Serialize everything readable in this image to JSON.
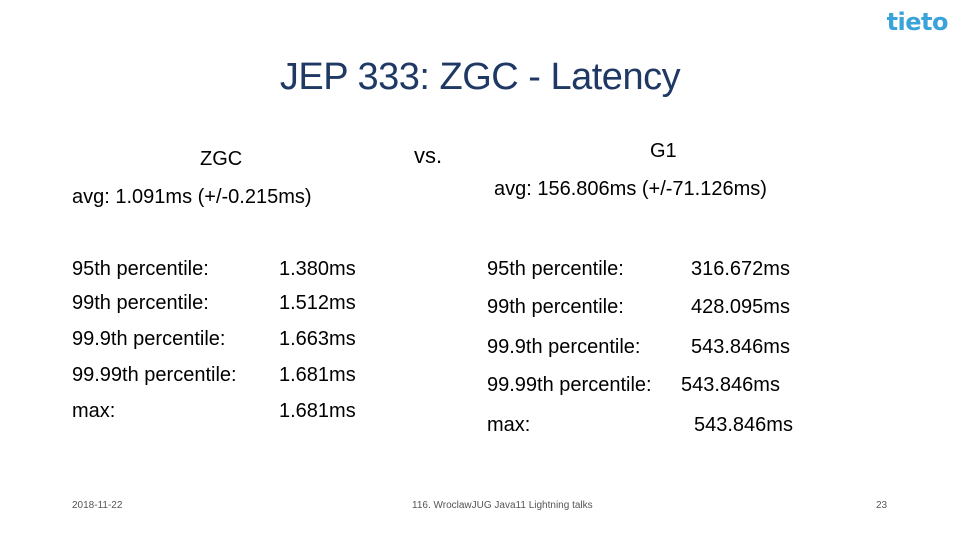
{
  "logo": "tieto",
  "title": "JEP 333: ZGC - Latency",
  "vs": "vs.",
  "left": {
    "heading": "ZGC",
    "avg": "avg: 1.091ms (+/-0.215ms)",
    "rows": [
      {
        "label": "95th percentile:",
        "value": "1.380ms"
      },
      {
        "label": "99th percentile:",
        "value": "1.512ms"
      },
      {
        "label": "99.9th percentile:",
        "value": "1.663ms"
      },
      {
        "label": "99.99th percentile:",
        "value": "1.681ms"
      },
      {
        "label": "max:",
        "value": "1.681ms"
      }
    ]
  },
  "right": {
    "heading": "G1",
    "avg": "avg: 156.806ms (+/-71.126ms)",
    "rows": [
      {
        "label": "95th percentile:",
        "value": "316.672ms"
      },
      {
        "label": "99th percentile:",
        "value": "428.095ms"
      },
      {
        "label": "99.9th percentile:",
        "value": "543.846ms"
      },
      {
        "label": "99.99th percentile:",
        "value": "543.846ms"
      },
      {
        "label": "max:",
        "value": "543.846ms"
      }
    ]
  },
  "footer": {
    "date": "2018-11-22",
    "event": "116. WroclawJUG Java11 Lightning talks",
    "page": "23"
  }
}
